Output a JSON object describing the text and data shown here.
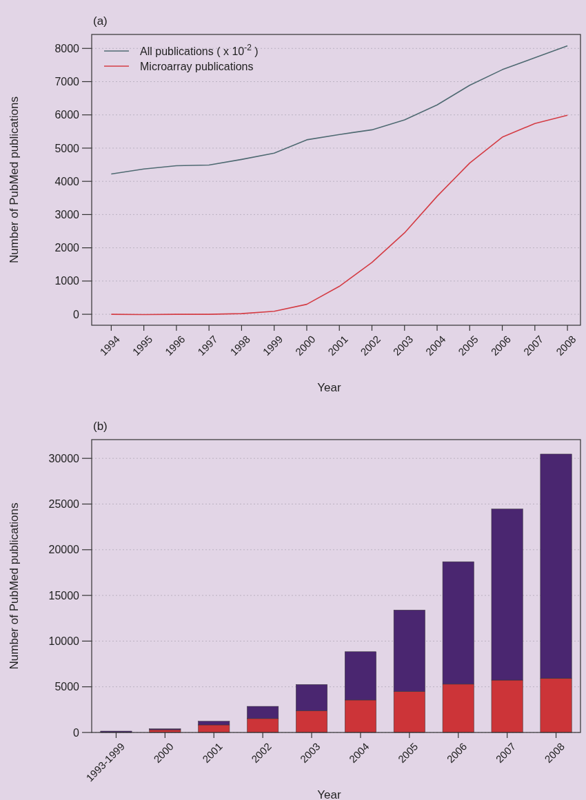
{
  "chart_data": [
    {
      "type": "line",
      "title": "(a)",
      "xlabel": "Year",
      "ylabel": "Number of PubMed publications",
      "x": [
        1994,
        1995,
        1996,
        1997,
        1998,
        1999,
        2000,
        2001,
        2002,
        2003,
        2004,
        2005,
        2006,
        2007,
        2008
      ],
      "series": [
        {
          "name": "All publications ( x 10$^{-2}$ )",
          "color": "#4f6a72",
          "values": [
            4220,
            4370,
            4470,
            4490,
            4660,
            4850,
            5250,
            5410,
            5550,
            5850,
            6300,
            6890,
            7360,
            7720,
            8080
          ]
        },
        {
          "name": "Microarray publications",
          "color": "#d43c44",
          "values": [
            0,
            -10,
            0,
            0,
            20,
            90,
            300,
            840,
            1560,
            2450,
            3550,
            4550,
            5330,
            5740,
            5990
          ]
        }
      ],
      "xlim": [
        1993.4,
        2008.4
      ],
      "ylim": [
        -330,
        8420
      ],
      "xticks": [
        1994,
        1995,
        1996,
        1997,
        1998,
        1999,
        2000,
        2001,
        2002,
        2003,
        2004,
        2005,
        2006,
        2007,
        2008
      ],
      "yticks": [
        0,
        1000,
        2000,
        3000,
        4000,
        5000,
        6000,
        7000,
        8000
      ],
      "grid": "y",
      "legend": "top left",
      "line_style": "solid",
      "marker": "none"
    },
    {
      "type": "bar",
      "title": "(b)",
      "xlabel": "Year",
      "ylabel": "Number of PubMed publications",
      "categories": [
        "1993-1999",
        "2000",
        "2001",
        "2002",
        "2003",
        "2004",
        "2005",
        "2006",
        "2007",
        "2008"
      ],
      "stacked": true,
      "series": [
        {
          "color": "#cc3438",
          "values": [
            null,
            300,
            830,
            1520,
            2390,
            3550,
            4490,
            5290,
            5730,
            5940
          ]
        },
        {
          "color": "#4a2670",
          "values": [
            150,
            100,
            400,
            1340,
            2860,
            5290,
            8910,
            13400,
            18730,
            24530
          ]
        }
      ],
      "ylim": [
        0,
        32050
      ],
      "yticks": [
        0,
        5000,
        10000,
        15000,
        20000,
        25000,
        30000
      ],
      "grid": "y",
      "legend": false
    }
  ]
}
